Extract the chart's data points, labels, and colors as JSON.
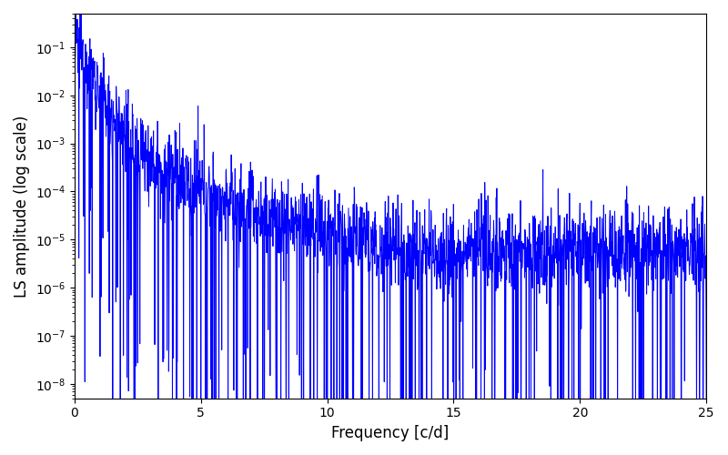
{
  "title": "",
  "xlabel": "Frequency [c/d]",
  "ylabel": "LS amplitude (log scale)",
  "xlim": [
    0,
    25
  ],
  "ylim_low": 5e-09,
  "ylim_high": 0.5,
  "line_color": "#0000ff",
  "line_width": 0.7,
  "background_color": "#ffffff",
  "figsize": [
    8.0,
    5.0
  ],
  "dpi": 100,
  "seed": 12345,
  "n_points": 2000,
  "freq_max": 25.0,
  "noise_floor": 8e-06,
  "power_law_exp": 3.0,
  "peak_amp": 0.15,
  "envelope_knee": 0.5
}
